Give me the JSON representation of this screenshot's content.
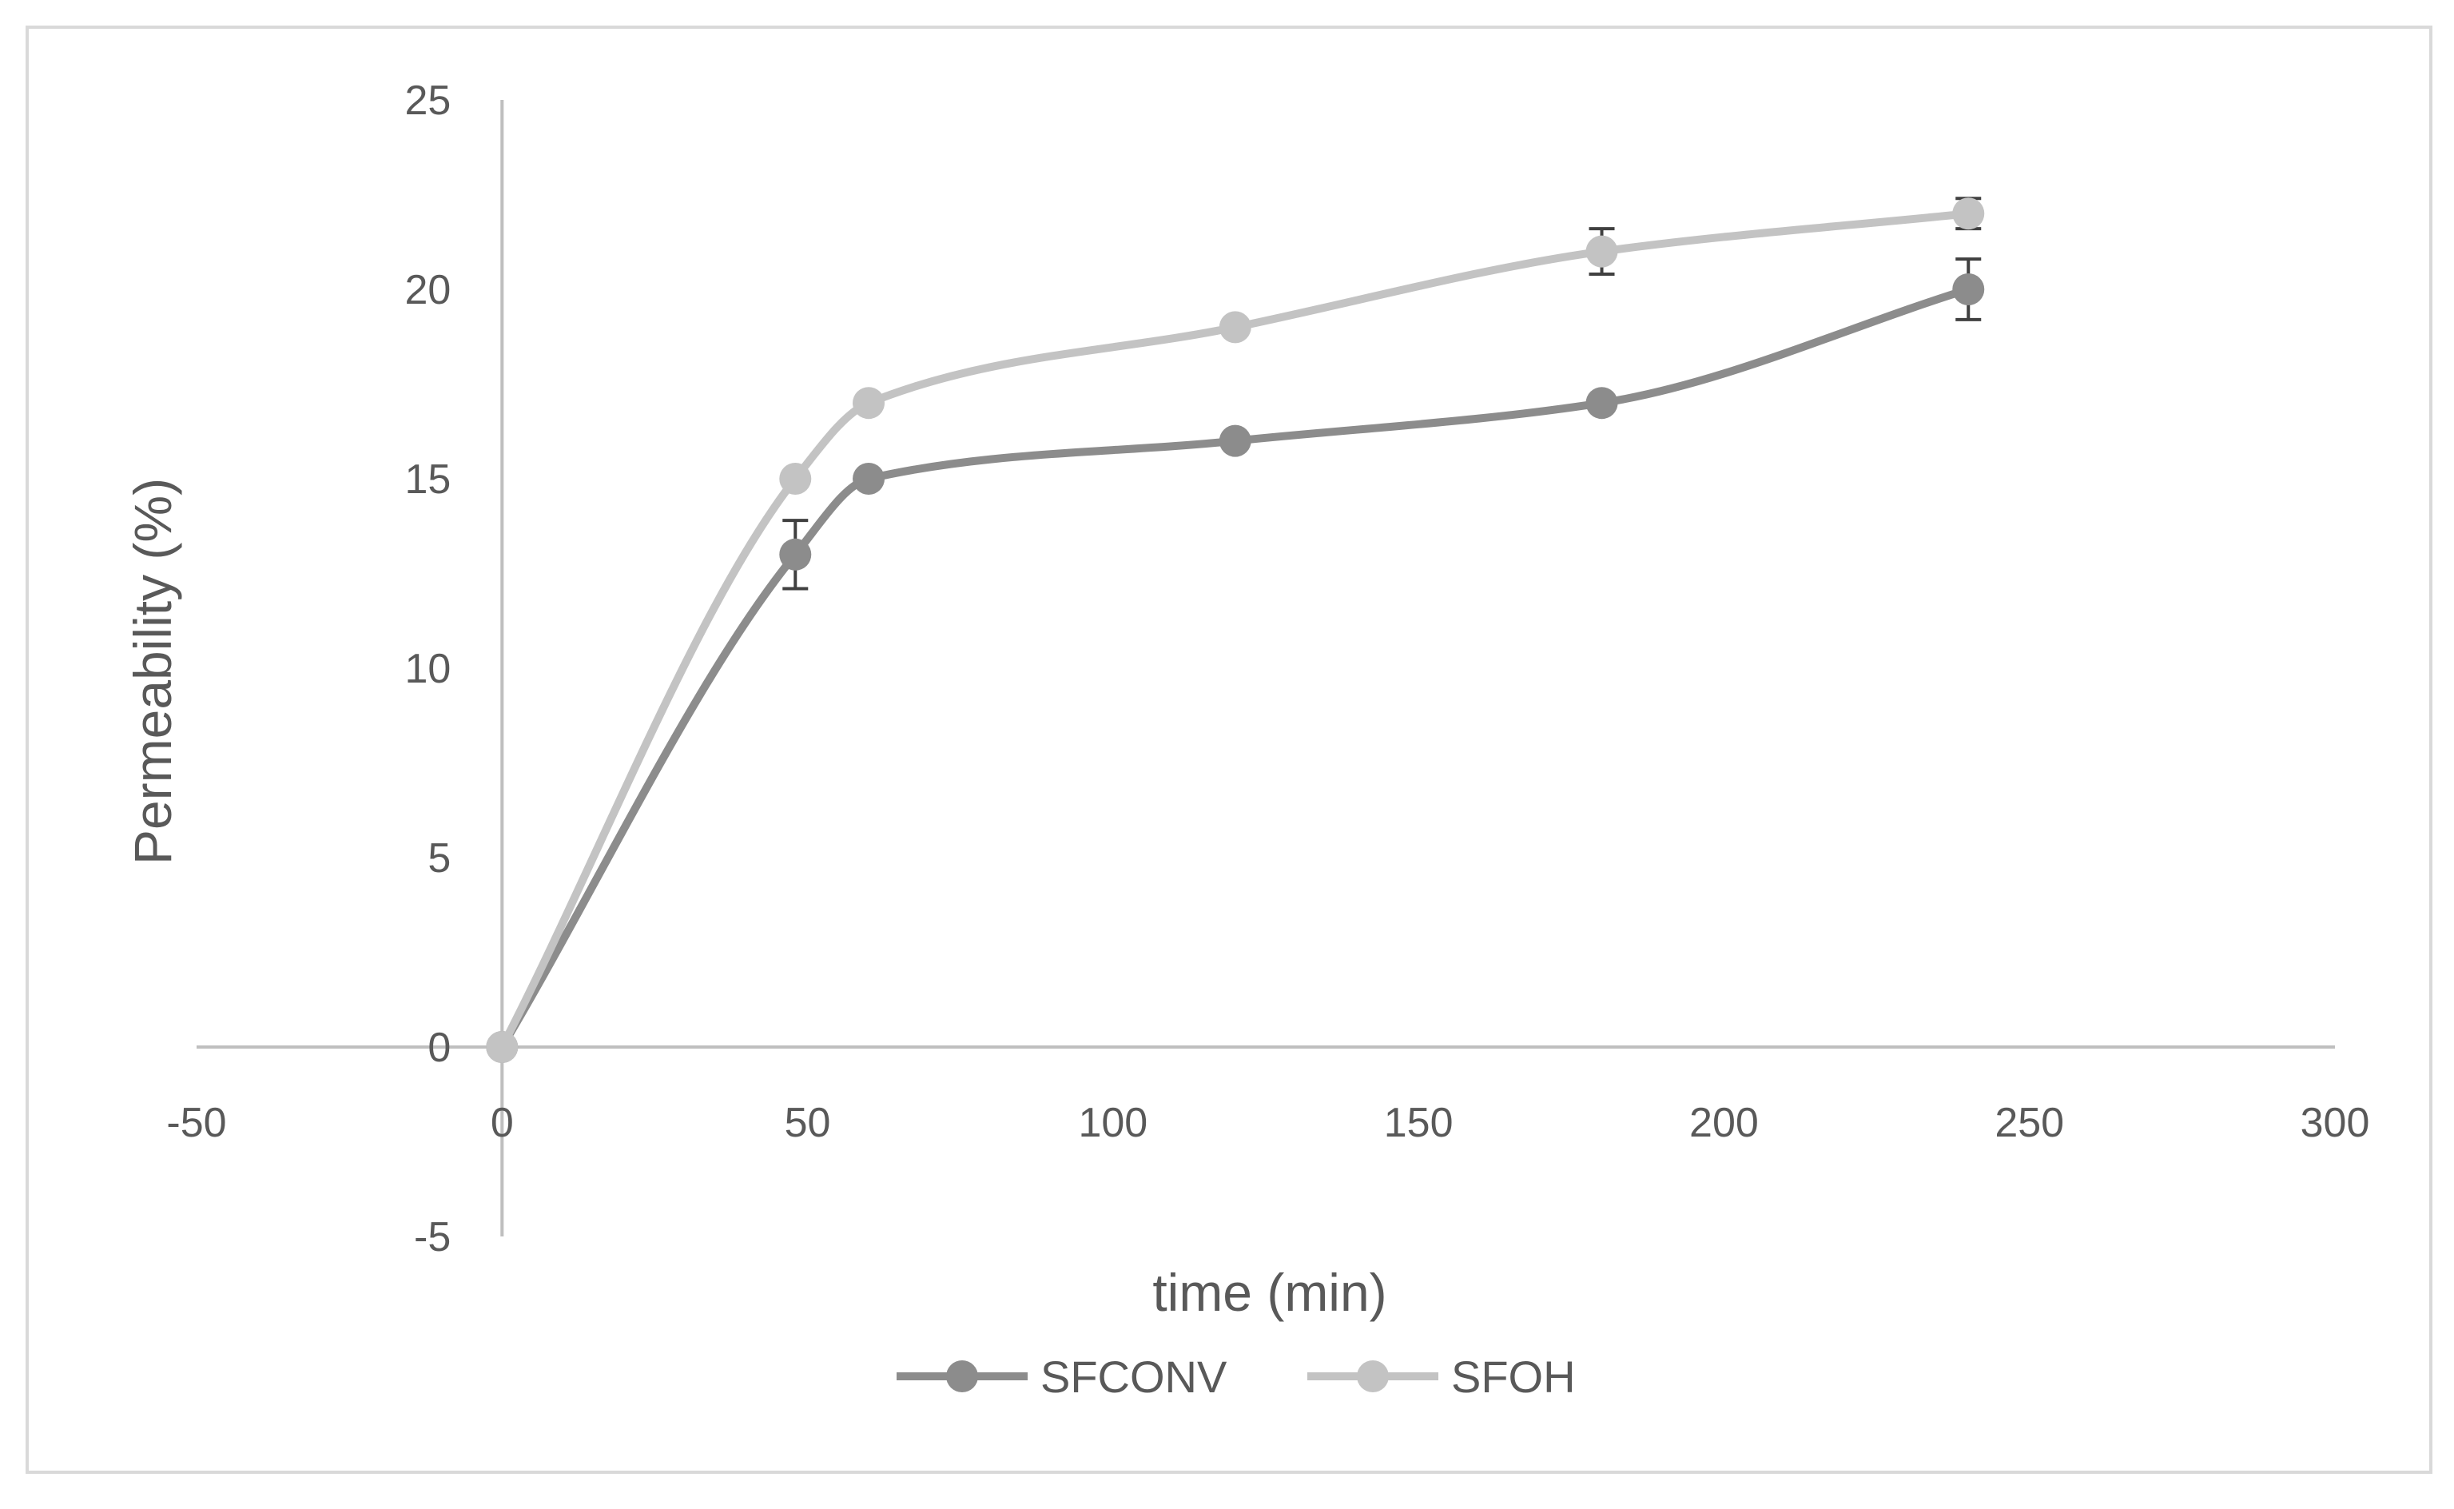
{
  "chart_data": {
    "type": "line",
    "xlabel": "time (min)",
    "ylabel": "Permeability (%)",
    "xlim": [
      -50,
      300
    ],
    "ylim": [
      -5,
      25
    ],
    "x_ticks": [
      -50,
      0,
      50,
      100,
      150,
      200,
      250,
      300
    ],
    "y_ticks": [
      -5,
      0,
      5,
      10,
      15,
      20,
      25
    ],
    "x_tick_labels": [
      "-50",
      "0",
      "50",
      "100",
      "150",
      "200",
      "250",
      "300"
    ],
    "y_tick_labels": [
      "-5",
      "0",
      "5",
      "10",
      "15",
      "20",
      "25"
    ],
    "grid": false,
    "legend_position": "bottom",
    "smooth": true,
    "series": [
      {
        "name": "SFCONV",
        "color": "#8c8c8c",
        "x": [
          0,
          48,
          60,
          120,
          180,
          240
        ],
        "y": [
          0,
          13,
          15,
          16,
          17,
          20
        ],
        "error": [
          0,
          0.9,
          0,
          0,
          0,
          0.8
        ]
      },
      {
        "name": "SFOH",
        "color": "#c3c3c3",
        "x": [
          0,
          48,
          60,
          120,
          180,
          240
        ],
        "y": [
          0,
          15,
          17,
          19,
          21,
          22
        ],
        "error": [
          0,
          0,
          0,
          0,
          0.6,
          0.4
        ]
      }
    ]
  }
}
